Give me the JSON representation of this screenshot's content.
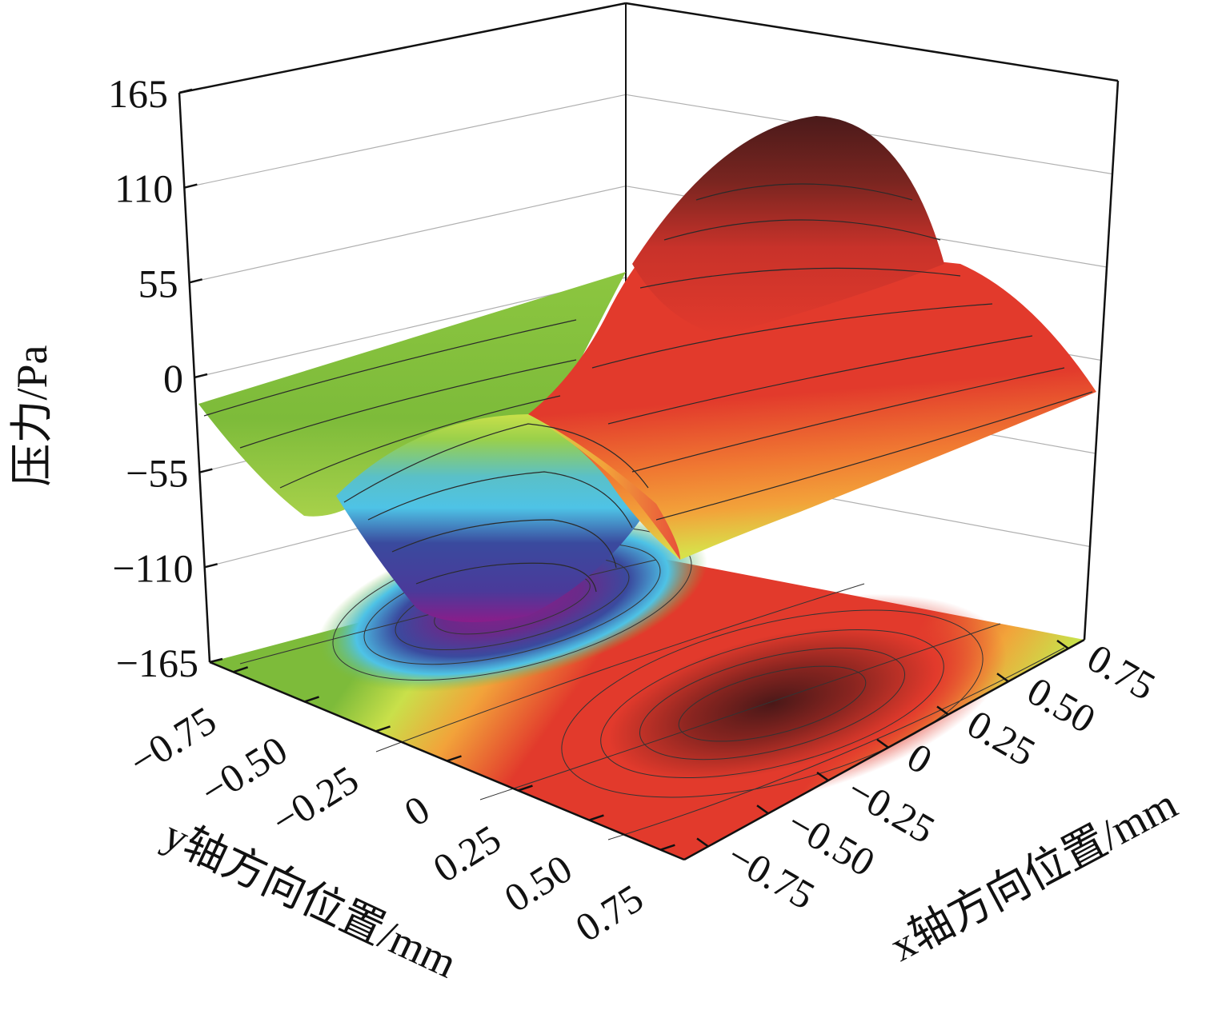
{
  "chart_data": {
    "type": "surface3d",
    "title": "",
    "zlabel": "压力/Pa",
    "ylabel": "y轴方向位置/mm",
    "xlabel": "x轴方向位置/mm",
    "zlim": [
      -165,
      165
    ],
    "xlim": [
      -0.75,
      0.75
    ],
    "ylim": [
      -0.75,
      0.75
    ],
    "z_ticks": [
      "165",
      "110",
      "55",
      "0",
      "−55",
      "−110",
      "−165"
    ],
    "y_ticks": [
      "−0.75",
      "−0.50",
      "−0.25",
      "0",
      "0.25",
      "0.50",
      "0.75"
    ],
    "x_ticks": [
      "−0.75",
      "−0.50",
      "−0.25",
      "0",
      "0.25",
      "0.50",
      "0.75"
    ],
    "surface_extremes": {
      "max_pressure": 150,
      "max_location": {
        "x": 0.6,
        "y": 0.0
      },
      "min_pressure": -150,
      "min_location": {
        "x": -0.6,
        "y": 0.0
      }
    },
    "projected_contour_on_floor": true,
    "colors": {
      "peak": "#5a1e1e",
      "high": "#e23a2c",
      "mid_high": "#f2a33a",
      "zero": "#c9e04a",
      "near_zero": "#7dbb3a",
      "mid_low": "#4ec3e6",
      "low": "#3a4a9e",
      "trough": "#8a1d8a"
    }
  }
}
